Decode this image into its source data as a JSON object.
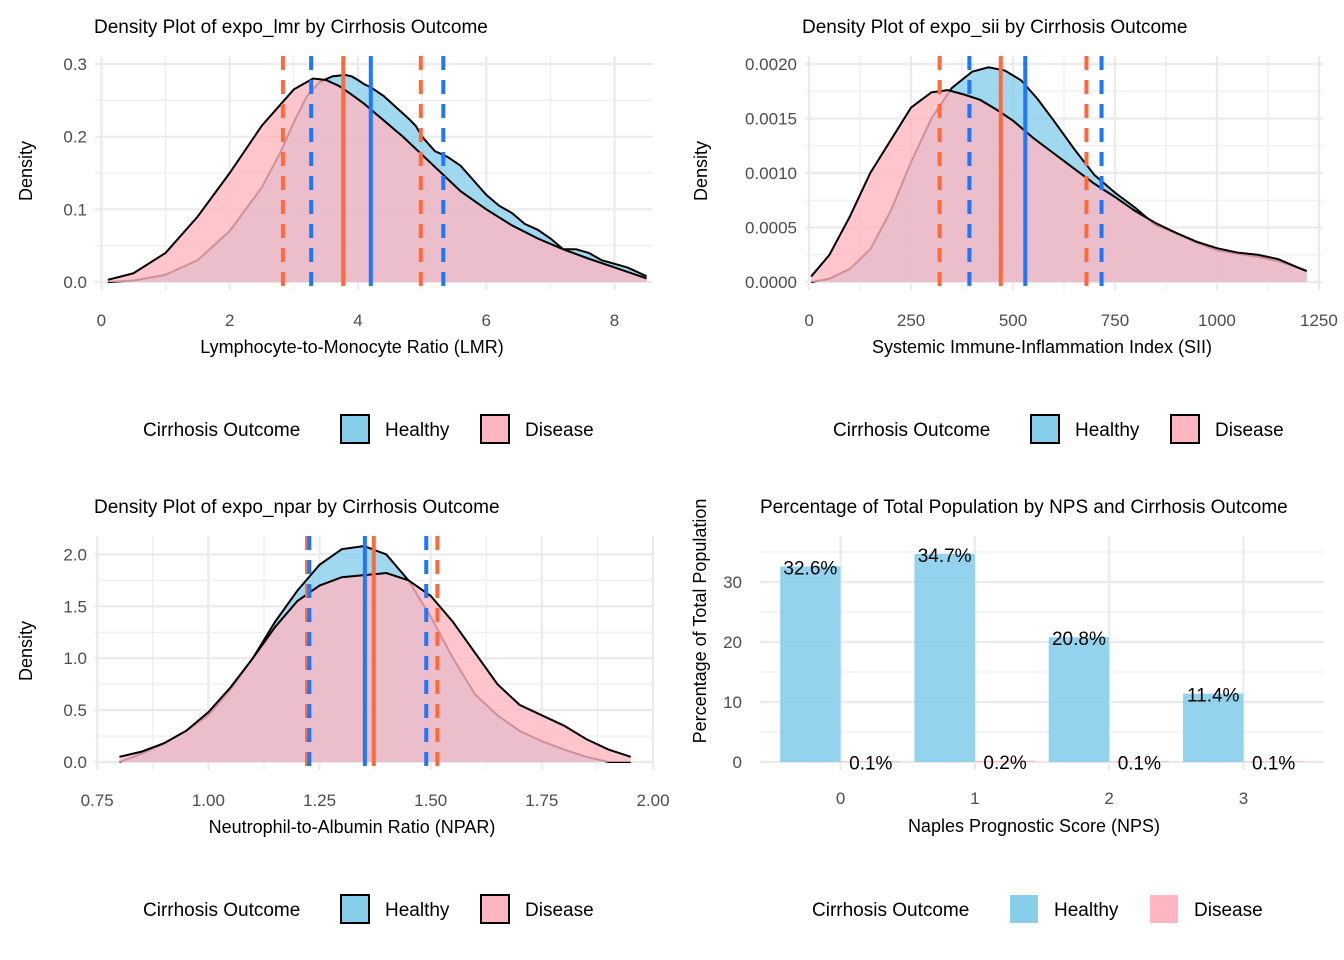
{
  "colors": {
    "healthy_fill": "#87CEEB",
    "disease_fill": "#FFB6C1",
    "healthy_line": "#1E78FF",
    "disease_line": "#FF6A3D",
    "grid": "#EBEBEB"
  },
  "chart_data": [
    {
      "id": "lmr",
      "type": "area",
      "title": "Density Plot of expo_lmr by Cirrhosis Outcome",
      "xlabel": "Lymphocyte-to-Monocyte Ratio (LMR)",
      "ylabel": "Density",
      "xlim": [
        -0.1,
        8.6
      ],
      "ylim": [
        0,
        0.3
      ],
      "x_ticks": [
        0,
        2,
        4,
        6,
        8
      ],
      "x_tick_labels": [
        "0",
        "2",
        "4",
        "6",
        "8"
      ],
      "y_ticks": [
        0,
        0.1,
        0.2,
        0.3
      ],
      "y_tick_labels": [
        "0.0",
        "0.1",
        "0.2",
        "0.3"
      ],
      "grid": true,
      "series": [
        {
          "name": "Healthy",
          "key": "healthy",
          "x": [
            0.1,
            0.5,
            1.0,
            1.5,
            2.0,
            2.5,
            2.8,
            3.0,
            3.2,
            3.4,
            3.6,
            3.8,
            3.9,
            4.0,
            4.1,
            4.2,
            4.3,
            4.4,
            4.5,
            4.6,
            4.7,
            4.8,
            4.9,
            5.0,
            5.1,
            5.2,
            5.4,
            5.6,
            5.8,
            6.0,
            6.2,
            6.4,
            6.6,
            6.8,
            7.0,
            7.2,
            7.4,
            7.6,
            7.8,
            8.0,
            8.2,
            8.5
          ],
          "y": [
            0.0,
            0.002,
            0.01,
            0.03,
            0.07,
            0.13,
            0.18,
            0.22,
            0.255,
            0.275,
            0.283,
            0.285,
            0.283,
            0.278,
            0.272,
            0.268,
            0.262,
            0.256,
            0.248,
            0.24,
            0.232,
            0.224,
            0.215,
            0.2,
            0.19,
            0.18,
            0.172,
            0.16,
            0.14,
            0.12,
            0.105,
            0.095,
            0.08,
            0.072,
            0.06,
            0.045,
            0.045,
            0.04,
            0.03,
            0.025,
            0.02,
            0.008
          ]
        },
        {
          "name": "Disease",
          "key": "disease",
          "x": [
            0.1,
            0.5,
            1.0,
            1.5,
            2.0,
            2.5,
            3.0,
            3.3,
            3.5,
            3.7,
            3.9,
            4.1,
            4.3,
            4.5,
            4.7,
            5.0,
            5.3,
            5.6,
            6.0,
            6.4,
            6.8,
            7.2,
            7.6,
            8.0,
            8.5
          ],
          "y": [
            0.003,
            0.012,
            0.04,
            0.09,
            0.15,
            0.215,
            0.265,
            0.28,
            0.278,
            0.27,
            0.258,
            0.245,
            0.23,
            0.215,
            0.2,
            0.175,
            0.15,
            0.125,
            0.1,
            0.078,
            0.06,
            0.045,
            0.032,
            0.02,
            0.005
          ]
        }
      ],
      "reference_lines": [
        {
          "series": "disease",
          "style": "dashed",
          "x": 2.83
        },
        {
          "series": "healthy",
          "style": "dashed",
          "x": 3.27
        },
        {
          "series": "disease",
          "style": "solid",
          "x": 3.77
        },
        {
          "series": "healthy",
          "style": "solid",
          "x": 4.2
        },
        {
          "series": "disease",
          "style": "dashed",
          "x": 4.98
        },
        {
          "series": "healthy",
          "style": "dashed",
          "x": 5.33
        }
      ]
    },
    {
      "id": "sii",
      "type": "area",
      "title": "Density Plot of expo_sii by Cirrhosis Outcome",
      "xlabel": "Systemic Immune-Inflammation Index (SII)",
      "ylabel": "Density",
      "xlim": [
        -10,
        1260
      ],
      "ylim": [
        0,
        0.002
      ],
      "x_ticks": [
        0,
        250,
        500,
        750,
        1000,
        1250
      ],
      "x_tick_labels": [
        "0",
        "250",
        "500",
        "750",
        "1000",
        "1250"
      ],
      "y_ticks": [
        0,
        0.0005,
        0.001,
        0.0015,
        0.002
      ],
      "y_tick_labels": [
        "0.0000",
        "0.0005",
        "0.0010",
        "0.0015",
        "0.0020"
      ],
      "grid": true,
      "series": [
        {
          "name": "Healthy",
          "key": "healthy",
          "x": [
            5,
            50,
            100,
            150,
            200,
            250,
            300,
            350,
            400,
            440,
            480,
            520,
            560,
            600,
            650,
            700,
            750,
            800,
            850,
            900,
            950,
            1000,
            1050,
            1100,
            1150,
            1200,
            1220
          ],
          "y": [
            0.0,
            3e-05,
            0.00012,
            0.0003,
            0.00065,
            0.0011,
            0.0015,
            0.00178,
            0.00193,
            0.00197,
            0.00194,
            0.00185,
            0.00168,
            0.00148,
            0.00122,
            0.00098,
            0.00082,
            0.00068,
            0.00052,
            0.00045,
            0.00036,
            0.00029,
            0.00026,
            0.00023,
            0.00019,
            0.00013,
            0.0001
          ]
        },
        {
          "name": "Disease",
          "key": "disease",
          "x": [
            5,
            50,
            100,
            150,
            200,
            250,
            300,
            340,
            380,
            420,
            460,
            500,
            550,
            600,
            650,
            700,
            750,
            800,
            850,
            900,
            950,
            1000,
            1050,
            1100,
            1150,
            1200,
            1220
          ],
          "y": [
            5e-05,
            0.00025,
            0.0006,
            0.001,
            0.0013,
            0.0016,
            0.00174,
            0.00176,
            0.00172,
            0.00167,
            0.00158,
            0.00148,
            0.00132,
            0.00118,
            0.00104,
            0.0009,
            0.00078,
            0.00065,
            0.00054,
            0.00045,
            0.00037,
            0.00031,
            0.00027,
            0.00025,
            0.00021,
            0.00013,
            0.0001
          ]
        }
      ],
      "reference_lines": [
        {
          "series": "disease",
          "style": "dashed",
          "x": 320
        },
        {
          "series": "healthy",
          "style": "dashed",
          "x": 393
        },
        {
          "series": "disease",
          "style": "solid",
          "x": 470
        },
        {
          "series": "healthy",
          "style": "solid",
          "x": 530
        },
        {
          "series": "disease",
          "style": "dashed",
          "x": 680
        },
        {
          "series": "healthy",
          "style": "dashed",
          "x": 717
        }
      ]
    },
    {
      "id": "npar",
      "type": "area",
      "title": "Density Plot of expo_npar by Cirrhosis Outcome",
      "xlabel": "Neutrophil-to-Albumin Ratio (NPAR)",
      "ylabel": "Density",
      "xlim": [
        0.745,
        2.0
      ],
      "ylim": [
        0,
        2.1
      ],
      "x_ticks": [
        0.75,
        1.0,
        1.25,
        1.5,
        1.75,
        2.0
      ],
      "x_tick_labels": [
        "0.75",
        "1.00",
        "1.25",
        "1.50",
        "1.75",
        "2.00"
      ],
      "y_ticks": [
        0,
        0.5,
        1.0,
        1.5,
        2.0
      ],
      "y_tick_labels": [
        "0.0",
        "0.5",
        "1.0",
        "1.5",
        "2.0"
      ],
      "grid": true,
      "series": [
        {
          "name": "Healthy",
          "key": "healthy",
          "x": [
            0.8,
            0.85,
            0.9,
            0.95,
            1.0,
            1.05,
            1.1,
            1.15,
            1.2,
            1.25,
            1.3,
            1.35,
            1.4,
            1.45,
            1.5,
            1.55,
            1.6,
            1.65,
            1.7,
            1.75,
            1.8,
            1.85,
            1.9,
            1.95
          ],
          "y": [
            0.0,
            0.08,
            0.18,
            0.3,
            0.45,
            0.7,
            1.0,
            1.35,
            1.65,
            1.9,
            2.05,
            2.08,
            2.0,
            1.75,
            1.4,
            1.0,
            0.65,
            0.45,
            0.3,
            0.2,
            0.12,
            0.05,
            0.0,
            0.0
          ]
        },
        {
          "name": "Disease",
          "key": "disease",
          "x": [
            0.8,
            0.85,
            0.9,
            0.95,
            1.0,
            1.05,
            1.1,
            1.15,
            1.2,
            1.25,
            1.3,
            1.35,
            1.4,
            1.45,
            1.5,
            1.55,
            1.6,
            1.65,
            1.7,
            1.75,
            1.8,
            1.85,
            1.9,
            1.95
          ],
          "y": [
            0.05,
            0.1,
            0.18,
            0.3,
            0.48,
            0.72,
            1.0,
            1.3,
            1.55,
            1.7,
            1.78,
            1.8,
            1.82,
            1.75,
            1.6,
            1.35,
            1.05,
            0.75,
            0.55,
            0.45,
            0.35,
            0.22,
            0.12,
            0.05
          ]
        }
      ],
      "reference_lines": [
        {
          "series": "disease",
          "style": "dashed",
          "x": 1.222
        },
        {
          "series": "healthy",
          "style": "dashed",
          "x": 1.227
        },
        {
          "series": "healthy",
          "style": "solid",
          "x": 1.352
        },
        {
          "series": "disease",
          "style": "solid",
          "x": 1.372
        },
        {
          "series": "healthy",
          "style": "dashed",
          "x": 1.49
        },
        {
          "series": "disease",
          "style": "dashed",
          "x": 1.515
        }
      ]
    },
    {
      "id": "nps",
      "type": "bar",
      "title": "Percentage of Total Population by NPS and Cirrhosis Outcome",
      "xlabel": "Naples Prognostic Score (NPS)",
      "ylabel": "Percentage of Total Population",
      "categories": [
        "0",
        "1",
        "2",
        "3"
      ],
      "ylim": [
        0,
        37
      ],
      "y_ticks": [
        0,
        10,
        20,
        30
      ],
      "y_tick_labels": [
        "0",
        "10",
        "20",
        "30"
      ],
      "grid": true,
      "series": [
        {
          "name": "Healthy",
          "key": "healthy",
          "values": [
            32.6,
            34.7,
            20.8,
            11.4
          ],
          "labels": [
            "32.6%",
            "34.7%",
            "20.8%",
            "11.4%"
          ]
        },
        {
          "name": "Disease",
          "key": "disease",
          "values": [
            0.1,
            0.2,
            0.1,
            0.1
          ],
          "labels": [
            "0.1%",
            "0.2%",
            "0.1%",
            "0.1%"
          ]
        }
      ]
    }
  ],
  "legend": {
    "title": "Cirrhosis Outcome",
    "items": [
      {
        "label": "Healthy",
        "key": "healthy"
      },
      {
        "label": "Disease",
        "key": "disease"
      }
    ]
  }
}
